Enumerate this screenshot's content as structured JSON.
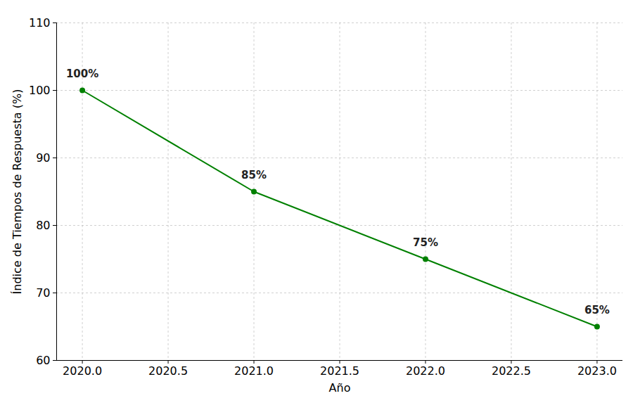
{
  "chart_data": {
    "type": "line",
    "x_label": "Año",
    "y_label": "Índice de Tiempos de Respuesta (%)",
    "x": [
      2020,
      2021,
      2022,
      2023
    ],
    "values": [
      100,
      85,
      75,
      65
    ],
    "value_labels": [
      "100%",
      "85%",
      "75%",
      "65%"
    ],
    "data_labels": true,
    "color": "#008000",
    "marker": "circle",
    "line_style": "solid",
    "xlim": [
      2019.85,
      2023.15
    ],
    "xticks": [
      {
        "value": 2020,
        "label": "2020.0"
      },
      {
        "value": 2020.5,
        "label": "2020.5"
      },
      {
        "value": 2021,
        "label": "2021.0"
      },
      {
        "value": 2021.5,
        "label": "2021.5"
      },
      {
        "value": 2022,
        "label": "2022.0"
      },
      {
        "value": 2022.5,
        "label": "2022.5"
      },
      {
        "value": 2023,
        "label": "2023.0"
      }
    ],
    "ylim": [
      60,
      110
    ],
    "yticks": [
      60,
      70,
      80,
      90,
      100,
      110
    ],
    "grid": true
  }
}
